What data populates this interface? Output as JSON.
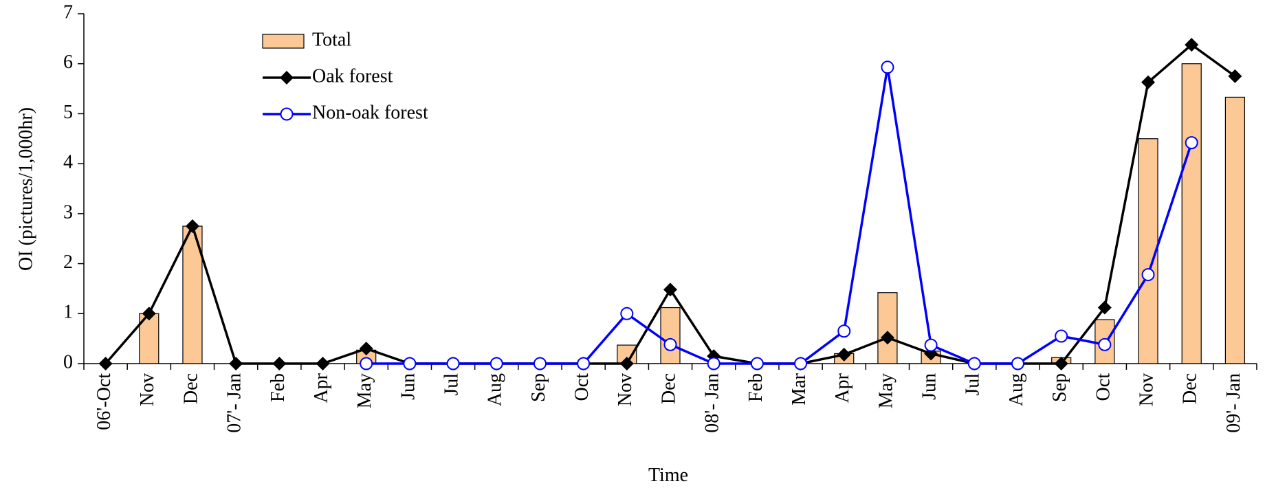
{
  "chart_data": {
    "type": "bar-line",
    "x_label": "Time",
    "y_label": "OI (pictures/1,000hr)",
    "categories": [
      "06'-Oct",
      "Nov",
      "Dec",
      "07'- Jan",
      "Feb",
      "Apr",
      "May",
      "Jun",
      "Jul",
      "Aug",
      "Sep",
      "Oct",
      "Nov",
      "Dec",
      "08'- Jan",
      "Feb",
      "Mar",
      "Apr",
      "May",
      "Jun",
      "Jul",
      "Aug",
      "Sep",
      "Oct",
      "Nov",
      "Dec",
      "09'- Jan"
    ],
    "series": [
      {
        "name": "Total",
        "kind": "bar",
        "color": "#fcc996",
        "values": [
          0,
          1.0,
          2.75,
          0,
          0,
          0,
          0.27,
          0,
          0,
          0,
          0,
          0,
          0.37,
          1.12,
          0,
          0,
          0,
          0.2,
          1.42,
          0.25,
          0,
          0,
          0.12,
          0.88,
          4.5,
          6.0,
          5.33
        ]
      },
      {
        "name": "Oak forest",
        "kind": "line",
        "marker": "diamond",
        "color": "#000000",
        "values": [
          0,
          1.0,
          2.75,
          0,
          0,
          0,
          0.3,
          0,
          0,
          0,
          0,
          0,
          0,
          1.48,
          0.15,
          0,
          0,
          0.18,
          0.52,
          0.2,
          0,
          0,
          0,
          1.12,
          5.63,
          6.38,
          5.75
        ]
      },
      {
        "name": "Non-oak forest",
        "kind": "line",
        "marker": "circle",
        "color": "#0000ff",
        "values": [
          null,
          null,
          null,
          null,
          null,
          null,
          0,
          0,
          0,
          0,
          0,
          0,
          1.0,
          0.38,
          0,
          0,
          0,
          0.65,
          5.93,
          0.37,
          0,
          0,
          0.55,
          0.38,
          1.78,
          4.42,
          null
        ]
      }
    ],
    "ylim": [
      0,
      7
    ],
    "yticks": [
      0,
      1,
      2,
      3,
      4,
      5,
      6,
      7
    ]
  }
}
